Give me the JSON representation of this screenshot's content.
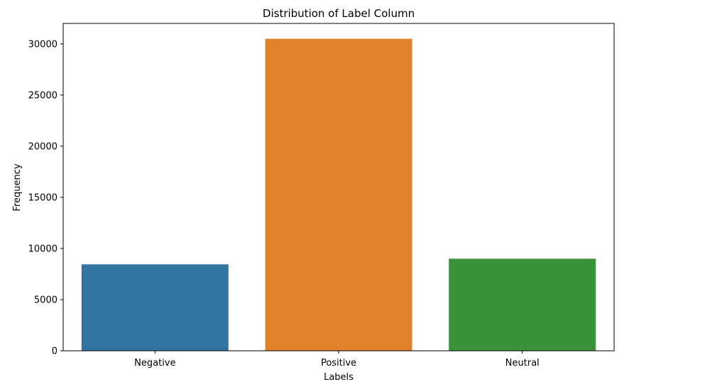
{
  "chart_data": {
    "type": "bar",
    "title": "Distribution of Label Column",
    "xlabel": "Labels",
    "ylabel": "Frequency",
    "categories": [
      "Negative",
      "Positive",
      "Neutral"
    ],
    "values": [
      8450,
      30500,
      9000
    ],
    "colors": [
      "#3274a1",
      "#e1812c",
      "#3a923a"
    ],
    "ylim": [
      0,
      32000
    ],
    "yticks": [
      0,
      5000,
      10000,
      15000,
      20000,
      25000,
      30000
    ],
    "grid": false,
    "legend": "none"
  }
}
